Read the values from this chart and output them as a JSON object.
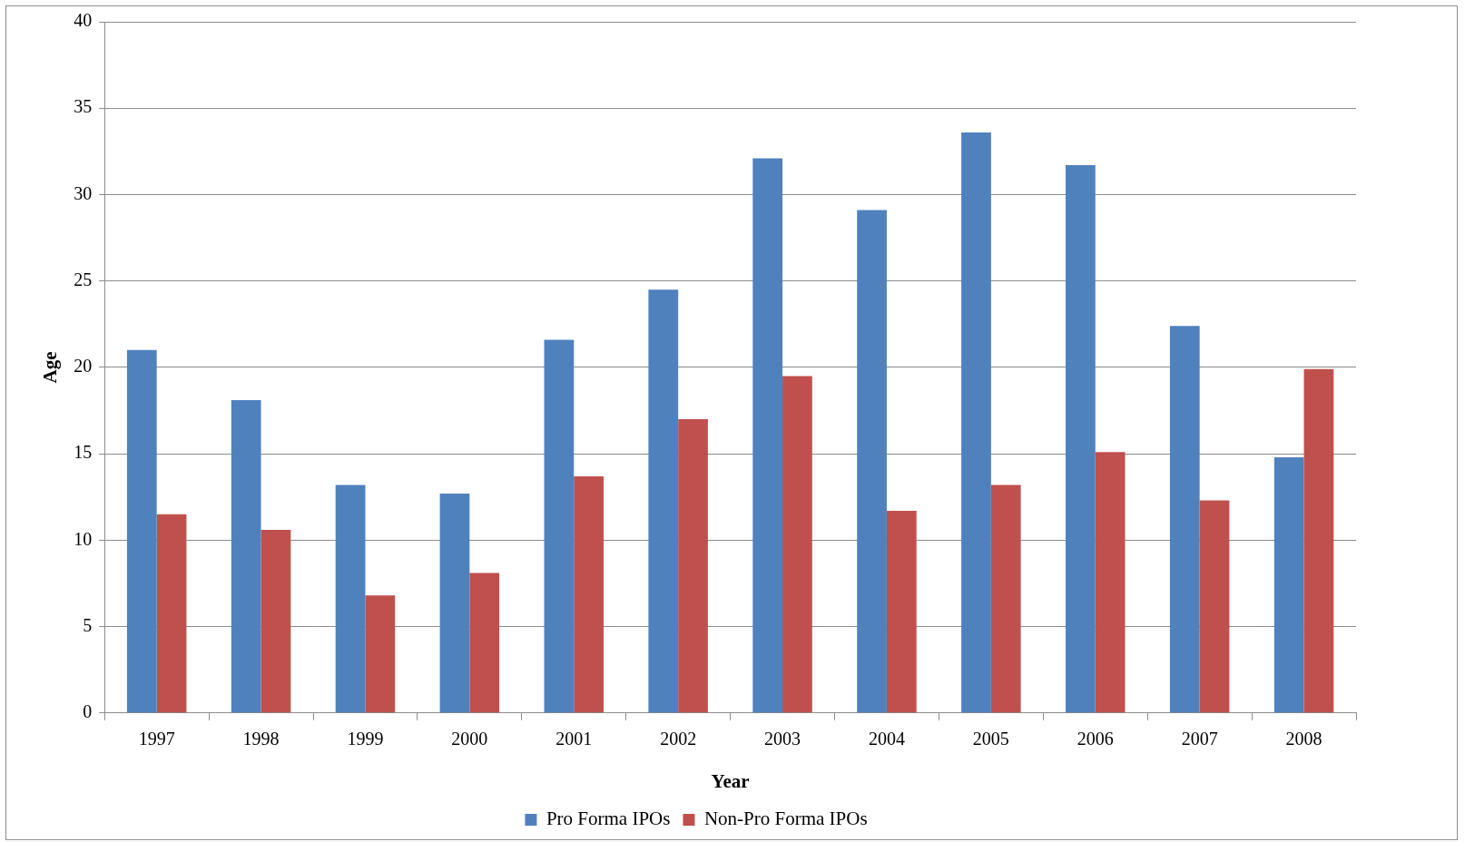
{
  "chart_data": {
    "type": "bar",
    "xlabel": "Year",
    "ylabel": "Age",
    "categories": [
      "1997",
      "1998",
      "1999",
      "2000",
      "2001",
      "2002",
      "2003",
      "2004",
      "2005",
      "2006",
      "2007",
      "2008"
    ],
    "series": [
      {
        "name": "Pro Forma IPOs",
        "color": "#4f81bd",
        "values": [
          21.0,
          18.1,
          13.2,
          12.7,
          21.6,
          24.5,
          32.1,
          29.1,
          33.6,
          31.7,
          22.4,
          14.8
        ]
      },
      {
        "name": "Non-Pro Forma IPOs",
        "color": "#c0504d",
        "values": [
          11.5,
          10.6,
          6.8,
          8.1,
          13.7,
          17.0,
          19.5,
          11.7,
          13.2,
          15.1,
          12.3,
          19.9
        ]
      }
    ],
    "ylim": [
      0,
      40
    ],
    "yticks": [
      0,
      5,
      10,
      15,
      20,
      25,
      30,
      35,
      40
    ],
    "grid": "y",
    "legend": "bottom"
  }
}
